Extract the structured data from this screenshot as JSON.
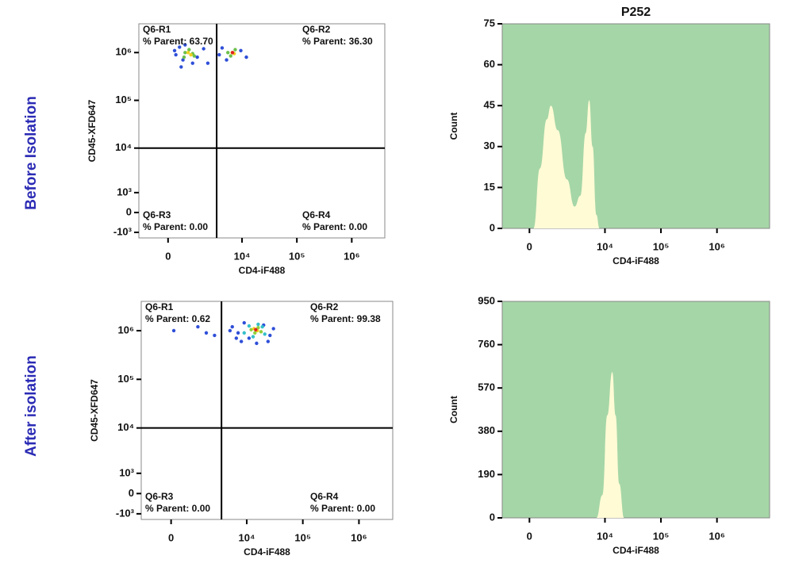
{
  "rows": [
    "Before Isolation",
    "After isolation"
  ],
  "chart_data": [
    {
      "type": "scatter",
      "xlabel": "CD4-iF488",
      "ylabel": "CD45-XFD647",
      "scale": "biexponential",
      "xlim": [
        -1400,
        4000000
      ],
      "ylim": [
        -1400,
        4000000
      ],
      "xticks": [
        0,
        {
          "value": 10000,
          "label": "10⁴"
        },
        {
          "value": 100000,
          "label": "10⁵"
        },
        {
          "value": 1000000,
          "label": "10⁶"
        }
      ],
      "yticks": [
        {
          "value": -1000,
          "label": "-10³"
        },
        0,
        {
          "value": 1000,
          "label": "10³"
        },
        {
          "value": 10000,
          "label": "10⁴"
        },
        {
          "value": 100000,
          "label": "10⁵"
        },
        {
          "value": 1000000,
          "label": "10⁶"
        }
      ],
      "gate": {
        "x": 3400,
        "y": 10000
      },
      "quadrants": [
        {
          "name": "Q6-R1",
          "label": "% Parent: 63.70"
        },
        {
          "name": "Q6-R2",
          "label": "% Parent: 36.30"
        },
        {
          "name": "Q6-R3",
          "label": "% Parent: 0.00"
        },
        {
          "name": "Q6-R4",
          "label": "% Parent: 0.00"
        }
      ],
      "series": [
        {
          "color": "#2f4fd8",
          "x": [
            300,
            450,
            600,
            1400,
            1900,
            250,
            2300,
            520,
            4300,
            9500,
            12000,
            5200,
            3800,
            700,
            1100
          ],
          "y": [
            900000,
            1300000,
            700000,
            800000,
            1200000,
            1100000,
            600000,
            500000,
            1250000,
            1100000,
            800000,
            700000,
            900000,
            1450000,
            600000
          ]
        },
        {
          "color": "#6cc04a",
          "x": [
            700,
            900,
            1100,
            650,
            1200,
            5500,
            7500,
            6200
          ],
          "y": [
            1000000,
            1150000,
            950000,
            800000,
            850000,
            1000000,
            1150000,
            850000
          ]
        },
        {
          "color": "#f0d020",
          "x": [
            850,
            1000,
            6600,
            7200
          ],
          "y": [
            1000000,
            900000,
            1000000,
            950000
          ]
        },
        {
          "color": "#e02020",
          "x": [
            6700
          ],
          "y": [
            1000000
          ]
        }
      ]
    },
    {
      "type": "area",
      "title": "P252",
      "xlabel": "CD4-iF488",
      "ylabel": "Count",
      "scale": "biexponential",
      "color": "#fffbd5",
      "background": "#a5d6a7",
      "xlim": [
        -1230,
        8700000
      ],
      "ylim": [
        0,
        75
      ],
      "xticks": [
        0,
        {
          "value": 10000,
          "label": "10⁴"
        },
        {
          "value": 100000,
          "label": "10⁵"
        },
        {
          "value": 1000000,
          "label": "10⁶"
        }
      ],
      "yticks": [
        0,
        15,
        30,
        45,
        60,
        75
      ],
      "x": [
        150,
        400,
        700,
        900,
        1300,
        2000,
        2800,
        3600,
        4500,
        5200,
        6000,
        7000,
        8000
      ],
      "values": [
        0,
        22,
        40,
        45,
        36,
        18,
        8,
        12,
        35,
        47,
        30,
        5,
        0
      ]
    },
    {
      "type": "scatter",
      "xlabel": "CD4-iF488",
      "ylabel": "CD45-XFD647",
      "scale": "biexponential",
      "xlim": [
        -1400,
        4000000
      ],
      "ylim": [
        -1400,
        4000000
      ],
      "xticks": [
        0,
        {
          "value": 10000,
          "label": "10⁴"
        },
        {
          "value": 100000,
          "label": "10⁵"
        },
        {
          "value": 1000000,
          "label": "10⁶"
        }
      ],
      "yticks": [
        {
          "value": -1000,
          "label": "-10³"
        },
        0,
        {
          "value": 1000,
          "label": "10³"
        },
        {
          "value": 10000,
          "label": "10⁴"
        },
        {
          "value": 100000,
          "label": "10⁵"
        },
        {
          "value": 1000000,
          "label": "10⁶"
        }
      ],
      "gate": {
        "x": 3500,
        "y": 10000
      },
      "quadrants": [
        {
          "name": "Q6-R1",
          "label": "% Parent: 0.62"
        },
        {
          "name": "Q6-R2",
          "label": "% Parent: 99.38"
        },
        {
          "name": "Q6-R3",
          "label": "% Parent: 0.00"
        },
        {
          "name": "Q6-R4",
          "label": "% Parent: 0.00"
        }
      ],
      "series": [
        {
          "color": "#2f4fd8",
          "x": [
            100,
            1200,
            1800,
            2600,
            5000,
            6500,
            8000,
            20000,
            26000,
            30000,
            9000,
            24000,
            5500,
            7000,
            15000,
            11000
          ],
          "y": [
            1000000,
            1200000,
            900000,
            800000,
            1000000,
            700000,
            600000,
            1300000,
            800000,
            1100000,
            1450000,
            600000,
            1200000,
            900000,
            550000,
            700000
          ]
        },
        {
          "color": "#35c0c8",
          "x": [
            9000,
            11000,
            19000,
            21000,
            13000,
            16000
          ],
          "y": [
            900000,
            1250000,
            1200000,
            850000,
            750000,
            1350000
          ]
        },
        {
          "color": "#8fd03a",
          "x": [
            12000,
            16000,
            18000,
            14000
          ],
          "y": [
            1050000,
            1150000,
            950000,
            900000
          ]
        },
        {
          "color": "#f0d020",
          "x": [
            13500,
            15500
          ],
          "y": [
            1100000,
            1000000
          ]
        },
        {
          "color": "#e02020",
          "x": [
            14500
          ],
          "y": [
            1050000
          ]
        }
      ]
    },
    {
      "type": "area",
      "xlabel": "CD4-iF488",
      "ylabel": "Count",
      "scale": "biexponential",
      "color": "#fffbd5",
      "background": "#a5d6a7",
      "xlim": [
        -1230,
        8700000
      ],
      "ylim": [
        0,
        950
      ],
      "xticks": [
        0,
        {
          "value": 10000,
          "label": "10⁴"
        },
        {
          "value": 100000,
          "label": "10⁵"
        },
        {
          "value": 1000000,
          "label": "10⁶"
        }
      ],
      "yticks": [
        0,
        190,
        380,
        570,
        760,
        950
      ],
      "x": [
        7000,
        9000,
        11000,
        13500,
        15500,
        18000,
        22000
      ],
      "values": [
        0,
        100,
        450,
        640,
        450,
        150,
        0
      ]
    }
  ]
}
